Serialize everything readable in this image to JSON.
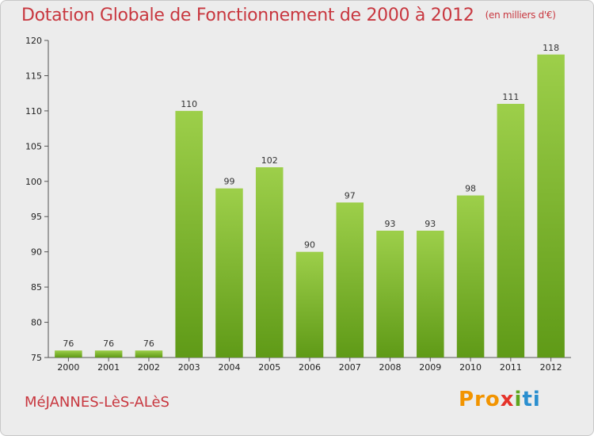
{
  "header": {
    "title": "Dotation Globale de Fonctionnement de 2000 à 2012",
    "unit": "(en milliers d'€)"
  },
  "footer": {
    "commune": "MéJANNES-LèS-ALèS",
    "logo_parts": [
      "Pro",
      "x",
      "i",
      "ti"
    ]
  },
  "colors": {
    "bar_light": "#9dcf4a",
    "bar_dark": "#5f9a17",
    "title": "#c8373f",
    "background": "#ececec"
  },
  "chart_data": {
    "type": "bar",
    "title": "Dotation Globale de Fonctionnement de 2000 à 2012",
    "subtitle": "(en milliers d'€)",
    "xlabel": "",
    "ylabel": "",
    "categories": [
      "2000",
      "2001",
      "2002",
      "2003",
      "2004",
      "2005",
      "2006",
      "2007",
      "2008",
      "2009",
      "2010",
      "2011",
      "2012"
    ],
    "values": [
      76,
      76,
      76,
      110,
      99,
      102,
      90,
      97,
      93,
      93,
      98,
      111,
      118
    ],
    "ylim": [
      75,
      120
    ],
    "yticks": [
      75,
      80,
      85,
      90,
      95,
      100,
      105,
      110,
      115,
      120
    ],
    "grid": false,
    "legend": "none"
  }
}
